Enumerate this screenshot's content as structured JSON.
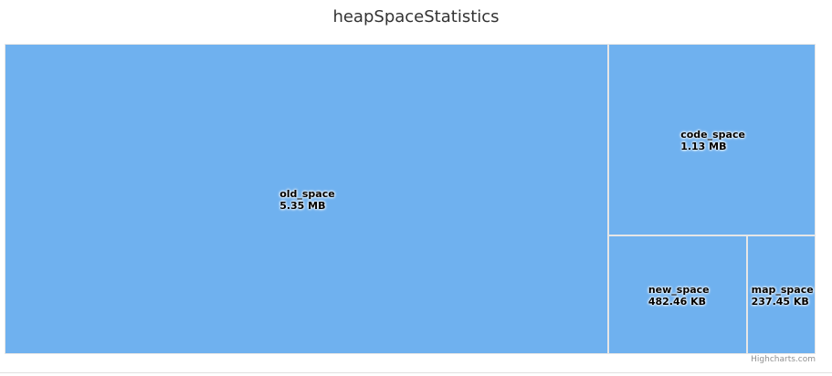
{
  "chart_data": {
    "type": "treemap",
    "title": "heapSpaceStatistics",
    "unit_note": "values in MB (labels shown as formatted)",
    "series": [
      {
        "name": "old_space",
        "value": 5.35,
        "label": "5.35 MB"
      },
      {
        "name": "code_space",
        "value": 1.13,
        "label": "1.13 MB"
      },
      {
        "name": "new_space",
        "value": 0.4711,
        "label": "482.46 KB"
      },
      {
        "name": "map_space",
        "value": 0.2319,
        "label": "237.45 KB"
      }
    ],
    "color": "#6fb1ef",
    "border_color": "#e6e6e6"
  },
  "credits": "Highcharts.com"
}
